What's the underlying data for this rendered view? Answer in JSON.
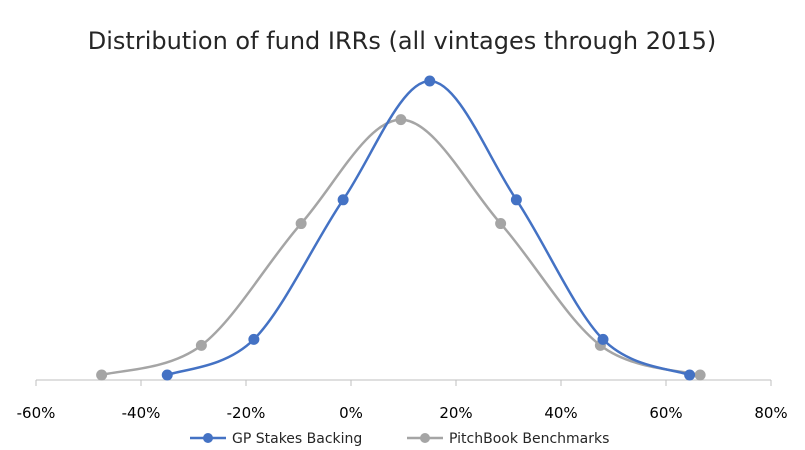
{
  "chart_data": {
    "type": "scatter",
    "title": "Distribution of fund IRRs (all vintages through 2015)",
    "xlabel": "",
    "ylabel": "",
    "xlim": [
      -0.6,
      0.8
    ],
    "ylim": [
      0,
      1.0
    ],
    "x_ticks": [
      -0.6,
      -0.4,
      -0.2,
      0.0,
      0.2,
      0.4,
      0.6,
      0.8
    ],
    "x_tick_labels": [
      "-60%",
      "-40%",
      "-20%",
      "0%",
      "20%",
      "40%",
      "60%",
      "80%"
    ],
    "y_axis_visible": false,
    "grid": false,
    "smooth_lines": true,
    "legend_position": "bottom",
    "series": [
      {
        "name": "GP Stakes Backing",
        "color": "#4472C4",
        "points": [
          {
            "x": -0.35,
            "y": 0.01
          },
          {
            "x": -0.185,
            "y": 0.13
          },
          {
            "x": -0.015,
            "y": 0.6
          },
          {
            "x": 0.15,
            "y": 1.0
          },
          {
            "x": 0.315,
            "y": 0.6
          },
          {
            "x": 0.48,
            "y": 0.13
          },
          {
            "x": 0.645,
            "y": 0.01
          }
        ]
      },
      {
        "name": "PitchBook Benchmarks",
        "color": "#A5A5A5",
        "points": [
          {
            "x": -0.475,
            "y": 0.01
          },
          {
            "x": -0.285,
            "y": 0.11
          },
          {
            "x": -0.095,
            "y": 0.52
          },
          {
            "x": 0.095,
            "y": 0.87
          },
          {
            "x": 0.285,
            "y": 0.52
          },
          {
            "x": 0.475,
            "y": 0.11
          },
          {
            "x": 0.665,
            "y": 0.01
          }
        ]
      }
    ]
  }
}
